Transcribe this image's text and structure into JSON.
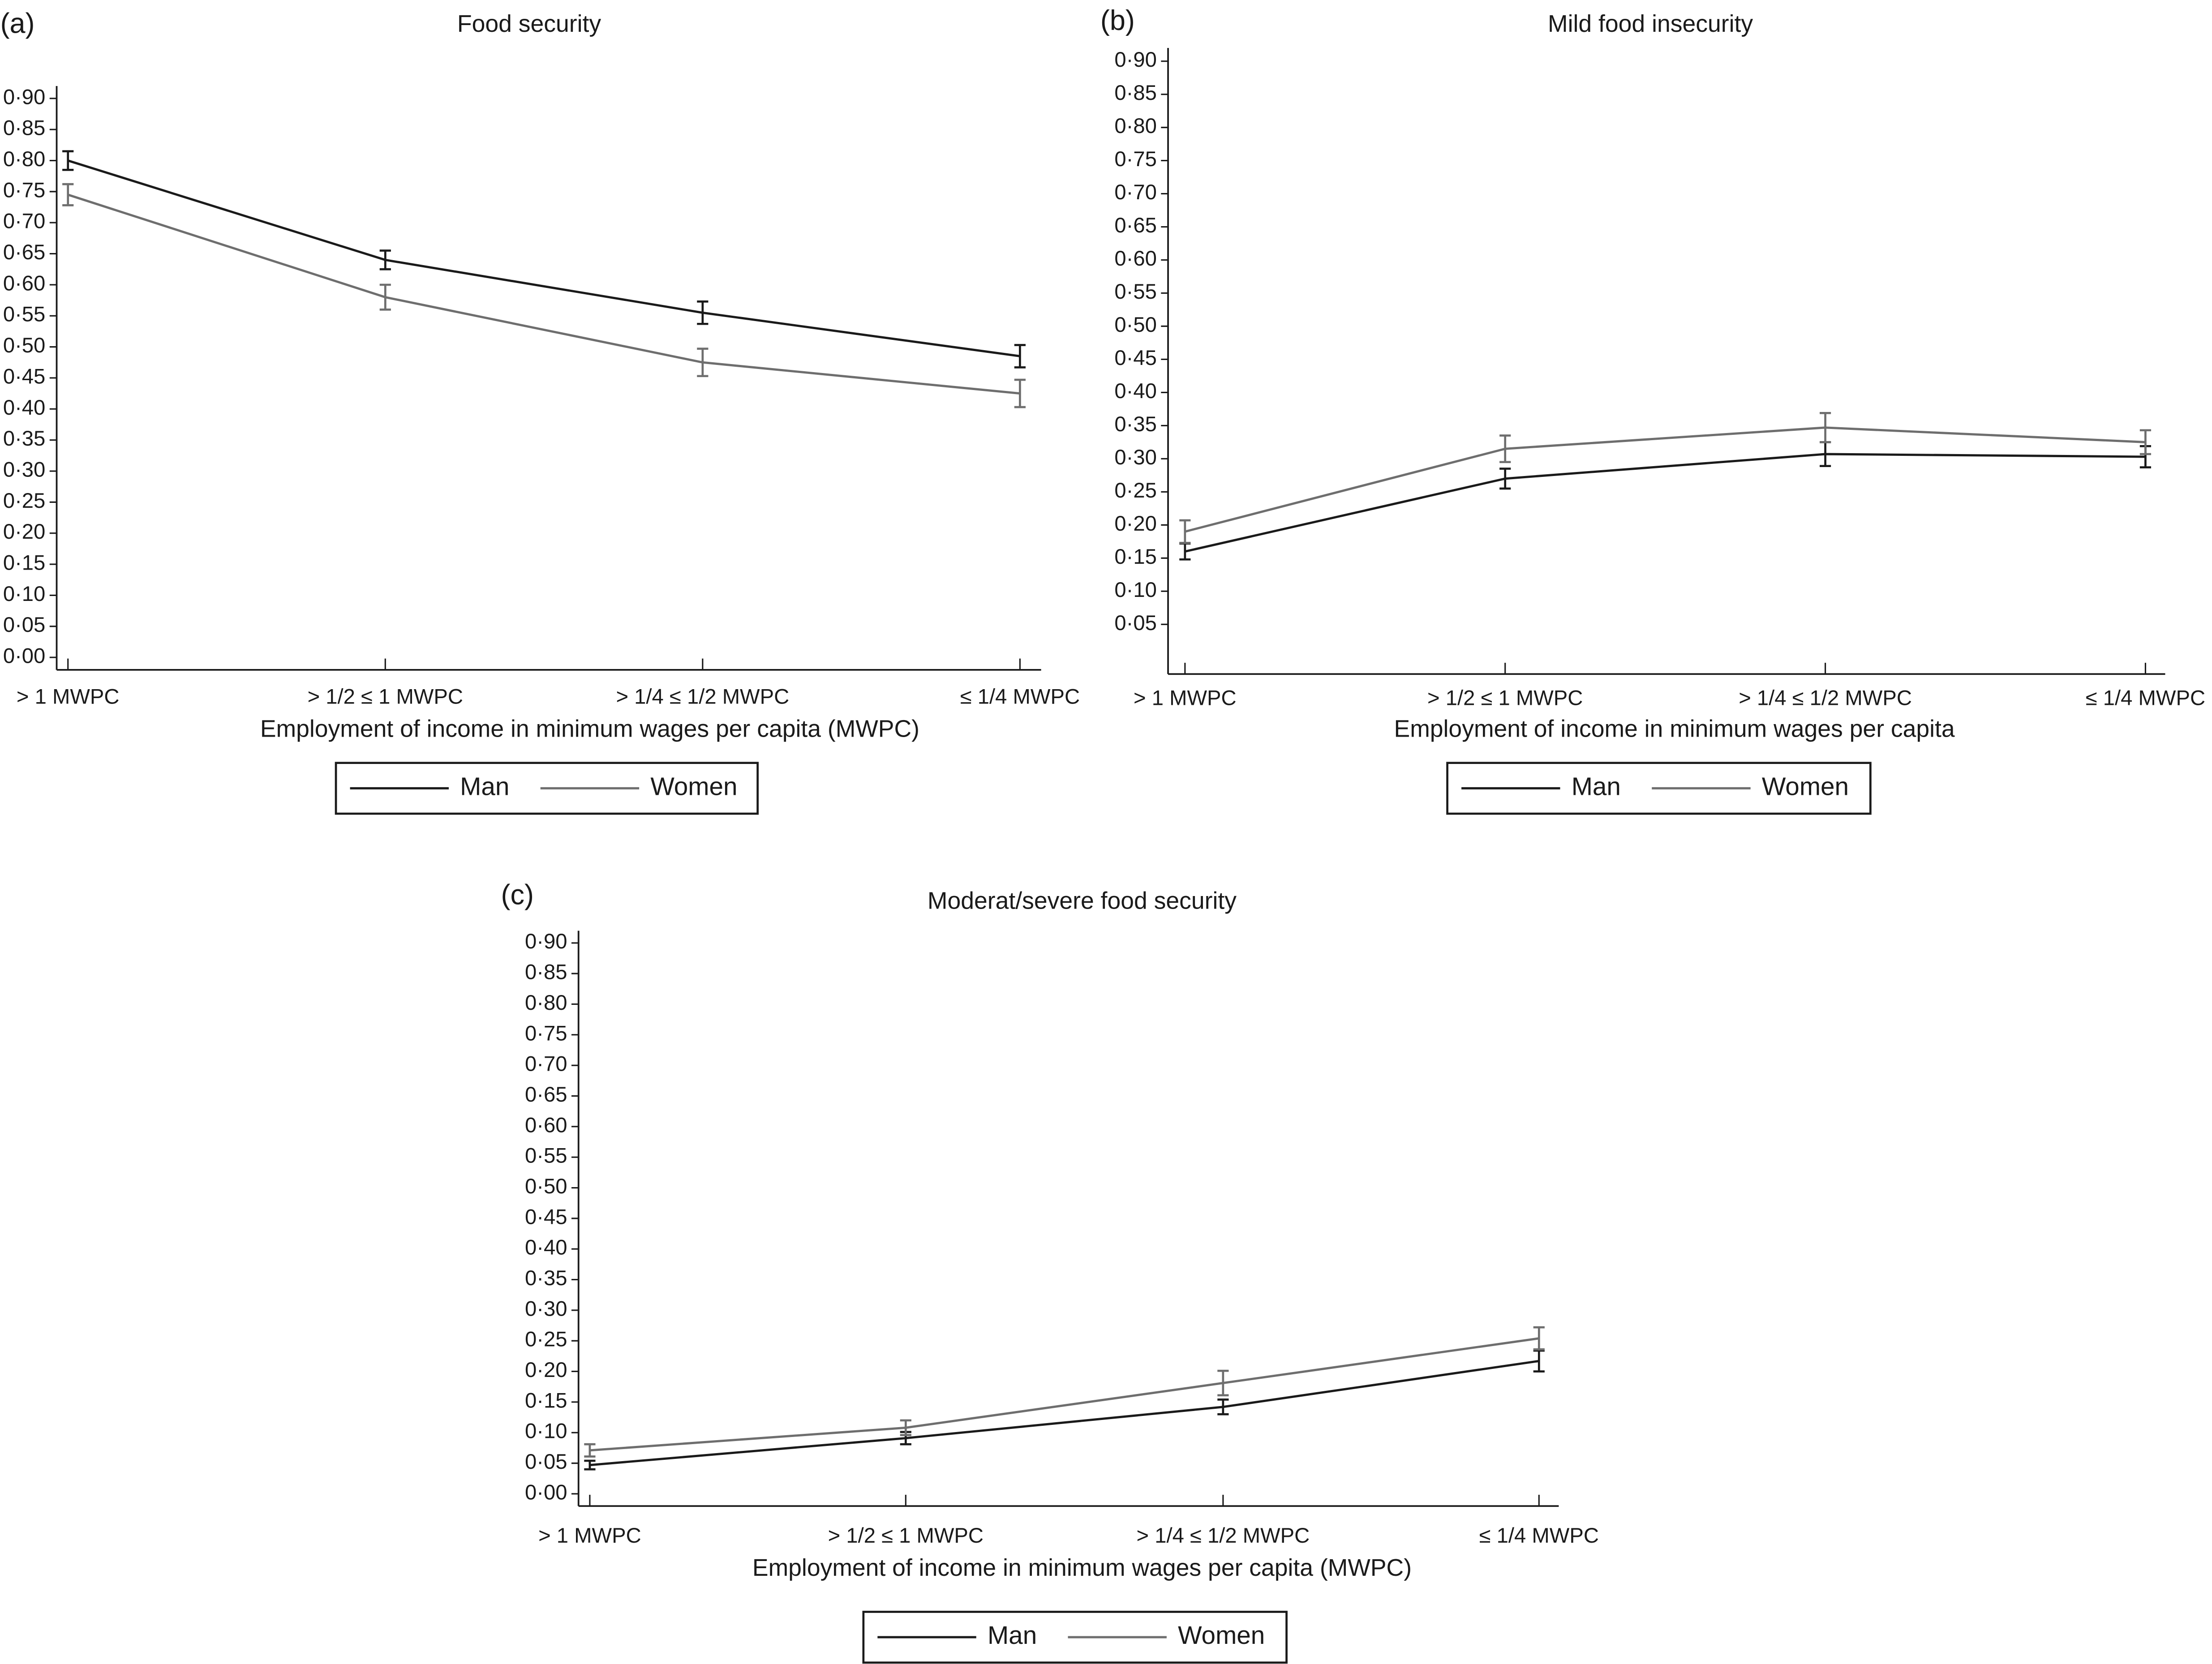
{
  "chart_data": [
    {
      "type": "line",
      "panel": "(a)",
      "title": "Food security",
      "x_label": "Employment of income in minimum wages per capita (MWPC)",
      "categories": [
        "> 1 MWPC",
        "> 1/2 ≤ 1 MWPC",
        "> 1/4 ≤ 1/2 MWPC",
        "≤ 1/4 MWPC"
      ],
      "series": [
        {
          "name": "Man",
          "color": "#1a1a1a",
          "values": [
            0.8,
            0.64,
            0.555,
            0.485
          ],
          "errors": [
            0.015,
            0.015,
            0.018,
            0.018
          ]
        },
        {
          "name": "Women",
          "color": "#6e6e6e",
          "values": [
            0.745,
            0.58,
            0.475,
            0.425
          ],
          "errors": [
            0.017,
            0.02,
            0.022,
            0.022
          ]
        }
      ],
      "ylim": [
        -0.02,
        0.92
      ],
      "yticks": [
        {
          "value": 0.9,
          "label": "0·90"
        },
        {
          "value": 0.85,
          "label": "0·85"
        },
        {
          "value": 0.8,
          "label": "0·80"
        },
        {
          "value": 0.75,
          "label": "0·75"
        },
        {
          "value": 0.7,
          "label": "0·70"
        },
        {
          "value": 0.65,
          "label": "0·65"
        },
        {
          "value": 0.6,
          "label": "0·60"
        },
        {
          "value": 0.55,
          "label": "0·55"
        },
        {
          "value": 0.5,
          "label": "0·50"
        },
        {
          "value": 0.45,
          "label": "0·45"
        },
        {
          "value": 0.4,
          "label": "0·40"
        },
        {
          "value": 0.35,
          "label": "0·35"
        },
        {
          "value": 0.3,
          "label": "0·30"
        },
        {
          "value": 0.25,
          "label": "0·25"
        },
        {
          "value": 0.2,
          "label": "0·20"
        },
        {
          "value": 0.15,
          "label": "0·15"
        },
        {
          "value": 0.1,
          "label": "0·10"
        },
        {
          "value": 0.05,
          "label": "0·05"
        },
        {
          "value": 0,
          "label": "0·00"
        }
      ]
    },
    {
      "type": "line",
      "panel": "(b)",
      "title": "Mild food insecurity",
      "x_label": "Employment of income in minimum wages per capita",
      "categories": [
        "> 1 MWPC",
        "> 1/2 ≤ 1 MWPC",
        "> 1/4 ≤ 1/2 MWPC",
        "≤ 1/4 MWPC"
      ],
      "series": [
        {
          "name": "Man",
          "color": "#1a1a1a",
          "values": [
            0.16,
            0.27,
            0.307,
            0.303
          ],
          "errors": [
            0.012,
            0.015,
            0.018,
            0.016
          ]
        },
        {
          "name": "Women",
          "color": "#6e6e6e",
          "values": [
            0.19,
            0.315,
            0.347,
            0.325
          ],
          "errors": [
            0.017,
            0.02,
            0.022,
            0.018
          ]
        }
      ],
      "ylim": [
        -0.025,
        0.92
      ],
      "yticks": [
        {
          "value": 0.9,
          "label": "0·90"
        },
        {
          "value": 0.85,
          "label": "0·85"
        },
        {
          "value": 0.8,
          "label": "0·80"
        },
        {
          "value": 0.75,
          "label": "0·75"
        },
        {
          "value": 0.7,
          "label": "0·70"
        },
        {
          "value": 0.65,
          "label": "0·65"
        },
        {
          "value": 0.6,
          "label": "0·60"
        },
        {
          "value": 0.55,
          "label": "0·55"
        },
        {
          "value": 0.5,
          "label": "0·50"
        },
        {
          "value": 0.45,
          "label": "0·45"
        },
        {
          "value": 0.4,
          "label": "0·40"
        },
        {
          "value": 0.35,
          "label": "0·35"
        },
        {
          "value": 0.3,
          "label": "0·30"
        },
        {
          "value": 0.25,
          "label": "0·25"
        },
        {
          "value": 0.2,
          "label": "0·20"
        },
        {
          "value": 0.15,
          "label": "0·15"
        },
        {
          "value": 0.1,
          "label": "0·10"
        },
        {
          "value": 0.05,
          "label": "0·05"
        }
      ]
    },
    {
      "type": "line",
      "panel": "(c)",
      "title": "Moderat/severe food security",
      "x_label": "Employment of income in minimum wages per capita (MWPC)",
      "categories": [
        "> 1 MWPC",
        "> 1/2 ≤ 1 MWPC",
        "> 1/4 ≤ 1/2 MWPC",
        "≤ 1/4 MWPC"
      ],
      "series": [
        {
          "name": "Man",
          "color": "#1a1a1a",
          "values": [
            0.047,
            0.091,
            0.142,
            0.217
          ],
          "errors": [
            0.007,
            0.01,
            0.012,
            0.017
          ]
        },
        {
          "name": "Women",
          "color": "#6e6e6e",
          "values": [
            0.071,
            0.108,
            0.181,
            0.254
          ],
          "errors": [
            0.01,
            0.012,
            0.02,
            0.018
          ]
        }
      ],
      "ylim": [
        -0.02,
        0.92
      ],
      "yticks": [
        {
          "value": 0.9,
          "label": "0·90"
        },
        {
          "value": 0.85,
          "label": "0·85"
        },
        {
          "value": 0.8,
          "label": "0·80"
        },
        {
          "value": 0.75,
          "label": "0·75"
        },
        {
          "value": 0.7,
          "label": "0·70"
        },
        {
          "value": 0.65,
          "label": "0·65"
        },
        {
          "value": 0.6,
          "label": "0·60"
        },
        {
          "value": 0.55,
          "label": "0·55"
        },
        {
          "value": 0.5,
          "label": "0·50"
        },
        {
          "value": 0.45,
          "label": "0·45"
        },
        {
          "value": 0.4,
          "label": "0·40"
        },
        {
          "value": 0.35,
          "label": "0·35"
        },
        {
          "value": 0.3,
          "label": "0·30"
        },
        {
          "value": 0.25,
          "label": "0·25"
        },
        {
          "value": 0.2,
          "label": "0·20"
        },
        {
          "value": 0.15,
          "label": "0·15"
        },
        {
          "value": 0.1,
          "label": "0·10"
        },
        {
          "value": 0.05,
          "label": "0·05"
        },
        {
          "value": 0,
          "label": "0·00"
        }
      ]
    }
  ]
}
